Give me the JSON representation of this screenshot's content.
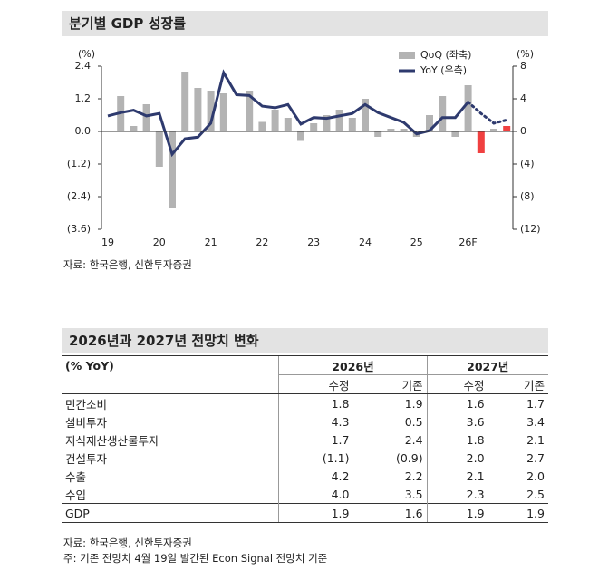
{
  "chart_data": {
    "type": "combo",
    "title": "분기별 GDP 성장률",
    "categories": [
      "19",
      null,
      null,
      null,
      "20",
      null,
      null,
      null,
      "21",
      null,
      null,
      null,
      "22",
      null,
      null,
      null,
      "23",
      null,
      null,
      null,
      "24",
      null,
      null,
      null,
      "25",
      null,
      null,
      null,
      "26F",
      null,
      null,
      null
    ],
    "y_unit": "(%)",
    "y2_unit": "(%)",
    "ylim": [
      -3.6,
      2.4
    ],
    "yticks": [
      {
        "value": -3.6,
        "label": "(3.6)"
      },
      {
        "value": -2.4,
        "label": "(2.4)"
      },
      {
        "value": -1.2,
        "label": "(1.2)"
      },
      {
        "value": 0,
        "label": "0.0"
      },
      1.2,
      2.4
    ],
    "y2lim": [
      -12,
      8
    ],
    "y2ticks": [
      {
        "value": -12,
        "label": "(12)"
      },
      {
        "value": -8,
        "label": "(8)"
      },
      {
        "value": -4,
        "label": "(4)"
      },
      0,
      4,
      8
    ],
    "legend": "top-right",
    "series": [
      {
        "name": "QoQ (좌축)",
        "type": "bar",
        "color": "#b3b3b3",
        "colors": [
          "#b3b3b3",
          "#b3b3b3",
          "#b3b3b3",
          "#b3b3b3",
          "#b3b3b3",
          "#b3b3b3",
          "#b3b3b3",
          "#b3b3b3",
          "#b3b3b3",
          "#b3b3b3",
          "#b3b3b3",
          "#b3b3b3",
          "#b3b3b3",
          "#b3b3b3",
          "#b3b3b3",
          "#b3b3b3",
          "#b3b3b3",
          "#b3b3b3",
          "#b3b3b3",
          "#b3b3b3",
          "#b3b3b3",
          "#b3b3b3",
          "#b3b3b3",
          "#b3b3b3",
          "#b3b3b3",
          "#b3b3b3",
          "#b3b3b3",
          "#b3b3b3",
          "#b3b3b3",
          "#f04040",
          "#b3b3b3",
          "#f04040"
        ],
        "values": [
          null,
          1.3,
          0.2,
          1.0,
          -1.3,
          -2.8,
          2.2,
          1.6,
          1.5,
          1.4,
          0.0,
          1.5,
          0.35,
          0.8,
          0.5,
          -0.35,
          0.3,
          0.6,
          0.8,
          0.5,
          1.2,
          -0.2,
          0.1,
          0.1,
          -0.2,
          0.6,
          1.3,
          -0.2,
          1.7,
          -0.8,
          0.1,
          0.2
        ]
      },
      {
        "name": "YoY (우측)",
        "type": "line",
        "color": "#2e3a6e",
        "axis": "y2",
        "dotted_from": 28,
        "values": [
          1.9,
          2.3,
          2.6,
          1.9,
          2.2,
          -2.8,
          -0.9,
          -0.7,
          1.0,
          7.2,
          4.5,
          4.4,
          3.1,
          2.9,
          3.3,
          0.9,
          1.7,
          1.6,
          1.9,
          2.2,
          3.3,
          2.3,
          1.7,
          1.1,
          -0.3,
          0.1,
          1.7,
          1.7,
          3.6,
          2.2,
          1.0,
          1.4
        ]
      }
    ],
    "source": "자료: 한국은행, 신한투자증권"
  },
  "table": {
    "title": "2026년과 2027년 전망치 변화",
    "unit": "(% YoY)",
    "years": [
      "2026년",
      "2027년"
    ],
    "subheads": [
      "수정",
      "기존",
      "수정",
      "기존"
    ],
    "rows": [
      [
        "민간소비",
        "1.8",
        "1.9",
        "1.6",
        "1.7"
      ],
      [
        "설비투자",
        "4.3",
        "0.5",
        "3.6",
        "3.4"
      ],
      [
        "지식재산생산물투자",
        "1.7",
        "2.4",
        "1.8",
        "2.1"
      ],
      [
        "건설투자",
        "(1.1)",
        "(0.9)",
        "2.0",
        "2.7"
      ],
      [
        "수출",
        "4.2",
        "2.2",
        "2.1",
        "2.0"
      ],
      [
        "수입",
        "4.0",
        "3.5",
        "2.3",
        "2.5"
      ],
      [
        "GDP",
        "1.9",
        "1.6",
        "1.9",
        "1.9"
      ]
    ],
    "notes": [
      "자료: 한국은행, 신한투자증권",
      "주: 기존 전망치 4월 19일 발간된 Econ Signal 전망치 기준"
    ]
  }
}
